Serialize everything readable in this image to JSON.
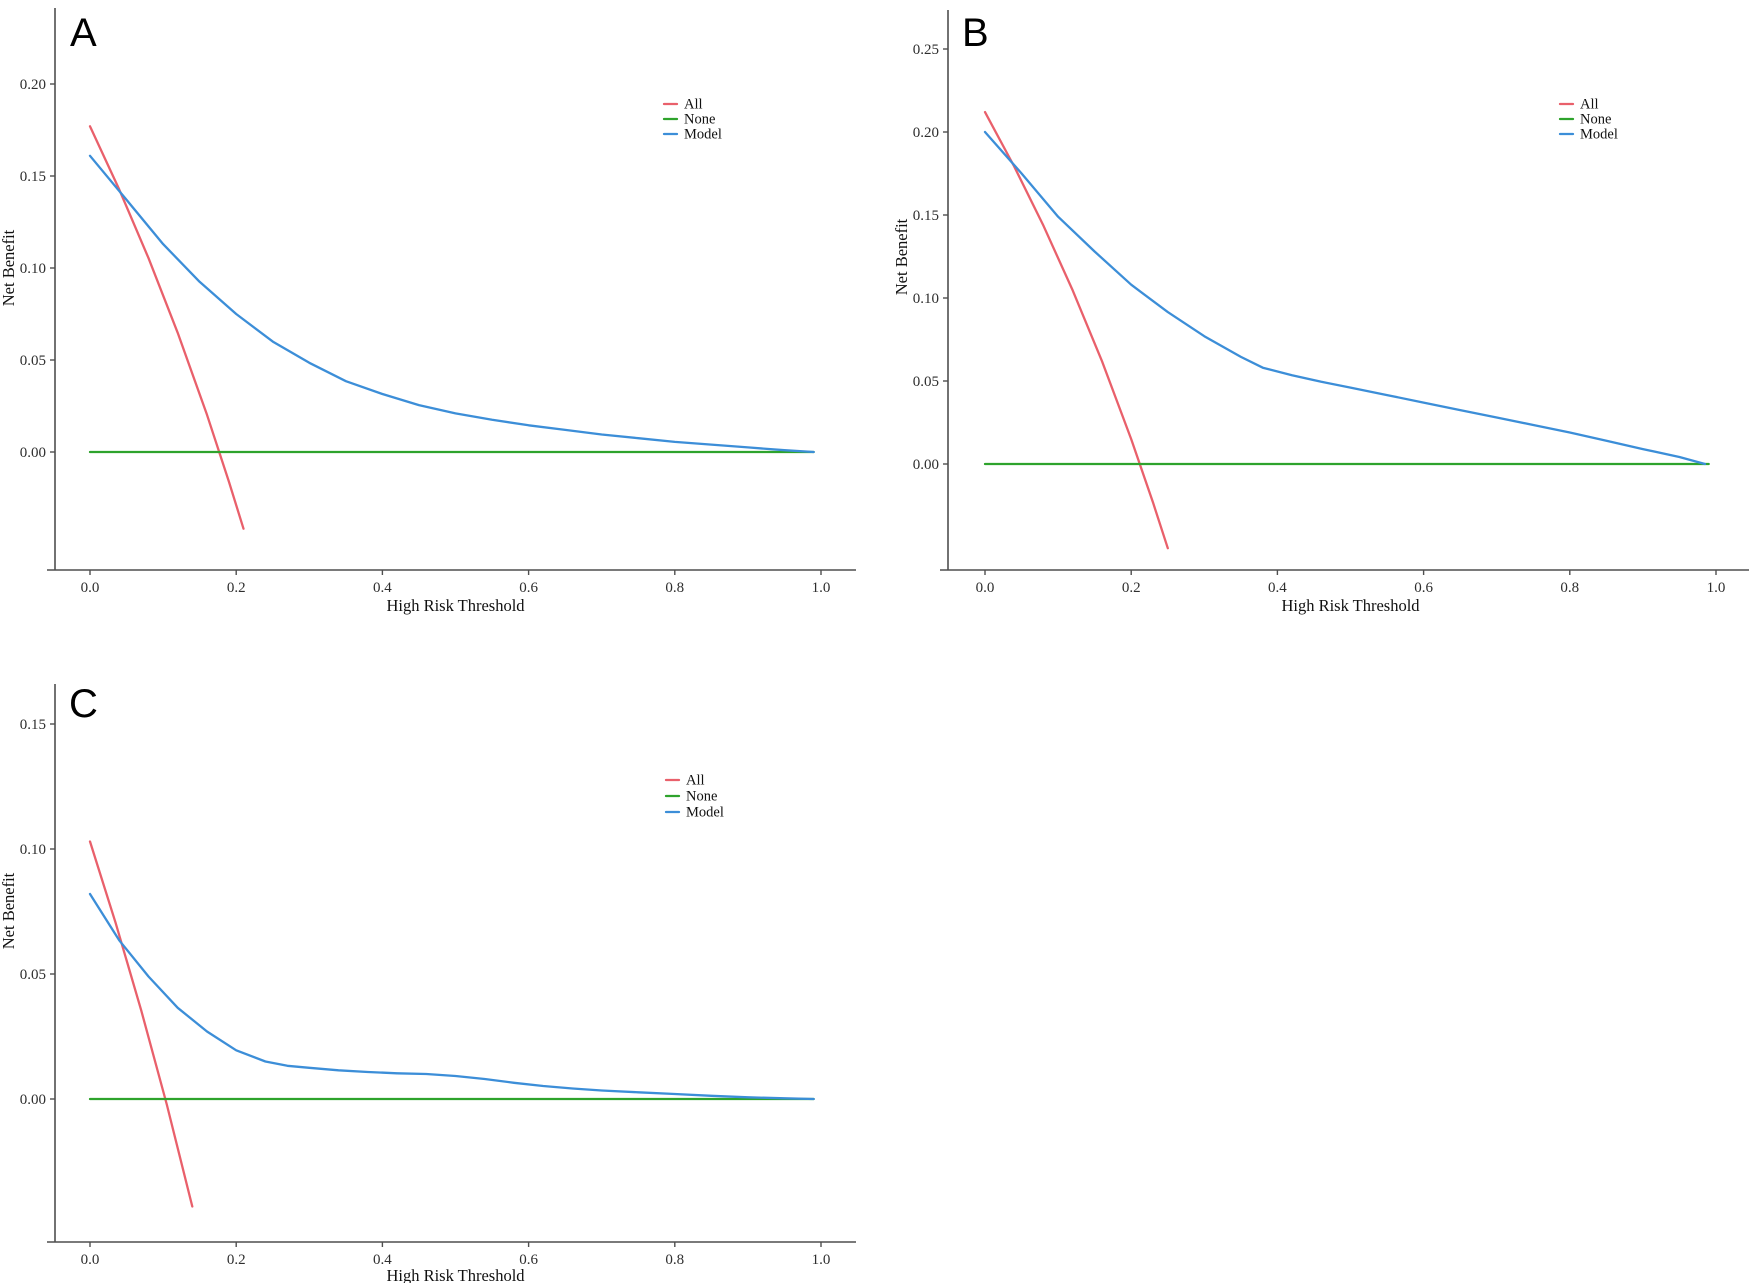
{
  "figure": {
    "background": "#ffffff",
    "description": "Decision curve analysis, three panels"
  },
  "colors": {
    "all": "#E9606B",
    "none": "#2EA32C",
    "model": "#3C8ED8",
    "axis": "#4f4f4f",
    "tick_text": "#2e2e2e",
    "label_text": "#111111"
  },
  "legend_labels": [
    "All",
    "None",
    "Model"
  ],
  "chart_data": [
    {
      "type": "line",
      "panel_label": "A",
      "title": "",
      "xlabel": "High Risk Threshold",
      "ylabel": "Net Benefit",
      "xlim": [
        0.0,
        1.0
      ],
      "ylim": [
        -0.064,
        0.241
      ],
      "xticks": [
        0.0,
        0.2,
        0.4,
        0.6,
        0.8,
        1.0
      ],
      "yticks": [
        0.0,
        0.05,
        0.1,
        0.15,
        0.2
      ],
      "grid": false,
      "legend_position": "top-right-inside",
      "series": [
        {
          "name": "All",
          "color_key": "all",
          "points": [
            [
              0,
              0.177
            ],
            [
              0.04,
              0.1427
            ],
            [
              0.08,
              0.1054
            ],
            [
              0.12,
              0.0648
            ],
            [
              0.16,
              0.0202
            ],
            [
              0.19,
              -0.0161
            ],
            [
              0.21,
              -0.0417
            ]
          ]
        },
        {
          "name": "None",
          "color_key": "none",
          "points": [
            [
              0,
              0
            ],
            [
              0.99,
              0
            ]
          ]
        },
        {
          "name": "Model",
          "color_key": "model",
          "points": [
            [
              0,
              0.161
            ],
            [
              0.05,
              0.137
            ],
            [
              0.1,
              0.113
            ],
            [
              0.15,
              0.0925
            ],
            [
              0.2,
              0.075
            ],
            [
              0.25,
              0.06
            ],
            [
              0.3,
              0.0485
            ],
            [
              0.35,
              0.0385
            ],
            [
              0.4,
              0.0315
            ],
            [
              0.45,
              0.0255
            ],
            [
              0.5,
              0.021
            ],
            [
              0.55,
              0.0175
            ],
            [
              0.6,
              0.0145
            ],
            [
              0.65,
              0.012
            ],
            [
              0.7,
              0.0095
            ],
            [
              0.75,
              0.0075
            ],
            [
              0.8,
              0.0055
            ],
            [
              0.85,
              0.004
            ],
            [
              0.9,
              0.0025
            ],
            [
              0.95,
              0.001
            ],
            [
              0.99,
              0
            ]
          ]
        }
      ]
    },
    {
      "type": "line",
      "panel_label": "B",
      "title": "",
      "xlabel": "High Risk Threshold",
      "ylabel": "Net Benefit",
      "xlim": [
        0.0,
        1.0
      ],
      "ylim": [
        -0.064,
        0.273
      ],
      "xticks": [
        0.0,
        0.2,
        0.4,
        0.6,
        0.8,
        1.0
      ],
      "yticks": [
        0.0,
        0.05,
        0.1,
        0.15,
        0.2,
        0.25
      ],
      "grid": false,
      "legend_position": "top-right-inside",
      "series": [
        {
          "name": "All",
          "color_key": "all",
          "points": [
            [
              0,
              0.212
            ],
            [
              0.04,
              0.1792
            ],
            [
              0.08,
              0.1435
            ],
            [
              0.12,
              0.1046
            ],
            [
              0.16,
              0.0619
            ],
            [
              0.2,
              0.015
            ],
            [
              0.23,
              -0.0234
            ],
            [
              0.25,
              -0.0507
            ]
          ]
        },
        {
          "name": "None",
          "color_key": "none",
          "points": [
            [
              0,
              0
            ],
            [
              0.99,
              0
            ]
          ]
        },
        {
          "name": "Model",
          "color_key": "model",
          "points": [
            [
              0,
              0.2
            ],
            [
              0.05,
              0.175
            ],
            [
              0.1,
              0.149
            ],
            [
              0.15,
              0.128
            ],
            [
              0.2,
              0.108
            ],
            [
              0.25,
              0.0915
            ],
            [
              0.3,
              0.077
            ],
            [
              0.35,
              0.0645
            ],
            [
              0.38,
              0.058
            ],
            [
              0.42,
              0.0535
            ],
            [
              0.46,
              0.0495
            ],
            [
              0.5,
              0.046
            ],
            [
              0.55,
              0.0415
            ],
            [
              0.6,
              0.037
            ],
            [
              0.65,
              0.0325
            ],
            [
              0.7,
              0.028
            ],
            [
              0.75,
              0.0235
            ],
            [
              0.8,
              0.019
            ],
            [
              0.85,
              0.014
            ],
            [
              0.9,
              0.009
            ],
            [
              0.95,
              0.0042
            ],
            [
              0.985,
              0
            ]
          ]
        }
      ]
    },
    {
      "type": "line",
      "panel_label": "C",
      "title": "",
      "xlabel": "High Risk Threshold",
      "ylabel": "Net Benefit",
      "xlim": [
        0.0,
        1.0
      ],
      "ylim": [
        -0.057,
        0.166
      ],
      "xticks": [
        0.0,
        0.2,
        0.4,
        0.6,
        0.8,
        1.0
      ],
      "yticks": [
        0.0,
        0.05,
        0.1,
        0.15
      ],
      "grid": false,
      "legend_position": "top-right-inside",
      "series": [
        {
          "name": "All",
          "color_key": "all",
          "points": [
            [
              0,
              0.103
            ],
            [
              0.035,
              0.0705
            ],
            [
              0.07,
              0.0355
            ],
            [
              0.105,
              -0.0022
            ],
            [
              0.14,
              -0.043
            ]
          ]
        },
        {
          "name": "None",
          "color_key": "none",
          "points": [
            [
              0,
              0
            ],
            [
              0.99,
              0
            ]
          ]
        },
        {
          "name": "Model",
          "color_key": "model",
          "points": [
            [
              0,
              0.082
            ],
            [
              0.04,
              0.0635
            ],
            [
              0.08,
              0.049
            ],
            [
              0.12,
              0.0365
            ],
            [
              0.16,
              0.027
            ],
            [
              0.2,
              0.0195
            ],
            [
              0.24,
              0.015
            ],
            [
              0.27,
              0.0133
            ],
            [
              0.3,
              0.0125
            ],
            [
              0.34,
              0.0115
            ],
            [
              0.38,
              0.0108
            ],
            [
              0.42,
              0.0103
            ],
            [
              0.46,
              0.01
            ],
            [
              0.5,
              0.0092
            ],
            [
              0.54,
              0.008
            ],
            [
              0.58,
              0.0065
            ],
            [
              0.62,
              0.0052
            ],
            [
              0.66,
              0.0042
            ],
            [
              0.7,
              0.0034
            ],
            [
              0.75,
              0.0027
            ],
            [
              0.8,
              0.002
            ],
            [
              0.85,
              0.0013
            ],
            [
              0.9,
              0.0007
            ],
            [
              0.95,
              0.0003
            ],
            [
              0.99,
              0
            ]
          ]
        }
      ]
    }
  ]
}
